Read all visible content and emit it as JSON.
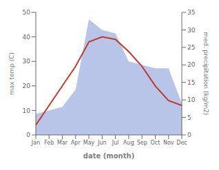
{
  "chart_data": {
    "type": "line",
    "categories": [
      "Jan",
      "Feb",
      "Mar",
      "Apr",
      "May",
      "Jun",
      "Jul",
      "Aug",
      "Sep",
      "Oct",
      "Nov",
      "Dec"
    ],
    "series": [
      {
        "type": "area",
        "axis": "y2",
        "color": "#b8c4e8",
        "values": [
          6,
          7,
          8,
          13,
          33,
          30,
          29,
          21,
          20,
          19,
          19,
          9
        ]
      },
      {
        "type": "line",
        "color": "#c0392b",
        "values": [
          4,
          12,
          20,
          28,
          38,
          40,
          39,
          34,
          28,
          20,
          14,
          12
        ]
      }
    ],
    "xlabel": "date (month)",
    "ylabel": "max temp (C)",
    "y2label": "med. precipitation (kg/m2)",
    "ylim": [
      0,
      50
    ],
    "yticks": [
      0,
      10,
      20,
      30,
      40,
      50
    ],
    "y2lim": [
      0,
      35
    ],
    "y2ticks": [
      0,
      5,
      10,
      15,
      20,
      25,
      30,
      35
    ]
  }
}
